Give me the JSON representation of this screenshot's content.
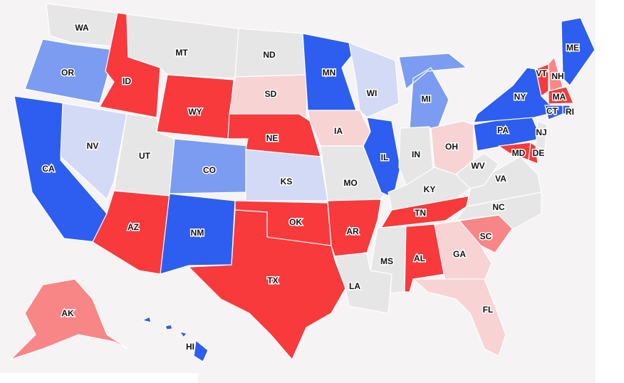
{
  "states": [
    {
      "label": "WA",
      "color": "#e6e6e6"
    },
    {
      "label": "OR",
      "color": "#7b9cf0"
    },
    {
      "label": "CA",
      "color": "#2d5ef0"
    },
    {
      "label": "NV",
      "color": "#d3daf5"
    },
    {
      "label": "ID",
      "color": "#f83a3d"
    },
    {
      "label": "MT",
      "color": "#e6e6e6"
    },
    {
      "label": "WY",
      "color": "#f83a3d"
    },
    {
      "label": "UT",
      "color": "#e6e6e6"
    },
    {
      "label": "AZ",
      "color": "#f83a3d"
    },
    {
      "label": "CO",
      "color": "#7b9cf0"
    },
    {
      "label": "NM",
      "color": "#2d5ef0"
    },
    {
      "label": "ND",
      "color": "#e6e6e6"
    },
    {
      "label": "SD",
      "color": "#f8d3d3"
    },
    {
      "label": "NE",
      "color": "#f83a3d"
    },
    {
      "label": "KS",
      "color": "#d3daf5"
    },
    {
      "label": "OK",
      "color": "#f83a3d"
    },
    {
      "label": "TX",
      "color": "#f83a3d"
    },
    {
      "label": "MN",
      "color": "#2d5ef0"
    },
    {
      "label": "IA",
      "color": "#f8d3d3"
    },
    {
      "label": "MO",
      "color": "#e6e6e6"
    },
    {
      "label": "AR",
      "color": "#f83a3d"
    },
    {
      "label": "LA",
      "color": "#e6e6e6"
    },
    {
      "label": "WI",
      "color": "#d3daf5"
    },
    {
      "label": "IL",
      "color": "#2d5ef0"
    },
    {
      "label": "MI",
      "color": "#7b9cf0"
    },
    {
      "label": "IN",
      "color": "#e6e6e6"
    },
    {
      "label": "OH",
      "color": "#f8d3d3"
    },
    {
      "label": "KY",
      "color": "#e6e6e6"
    },
    {
      "label": "TN",
      "color": "#f83a3d"
    },
    {
      "label": "MS",
      "color": "#e6e6e6"
    },
    {
      "label": "AL",
      "color": "#f83a3d"
    },
    {
      "label": "GA",
      "color": "#f8d3d3"
    },
    {
      "label": "FL",
      "color": "#f8d3d3"
    },
    {
      "label": "SC",
      "color": "#f98686"
    },
    {
      "label": "NC",
      "color": "#e6e6e6"
    },
    {
      "label": "VA",
      "color": "#e6e6e6"
    },
    {
      "label": "WV",
      "color": "#e6e6e6"
    },
    {
      "label": "PA",
      "color": "#2d5ef0"
    },
    {
      "label": "NY",
      "color": "#2d5ef0"
    },
    {
      "label": "VT",
      "color": "#f83a3d"
    },
    {
      "label": "NH",
      "color": "#f98686"
    },
    {
      "label": "ME",
      "color": "#2d5ef0"
    },
    {
      "label": "MA",
      "color": "#f83a3d"
    },
    {
      "label": "RI",
      "color": "#2d5ef0"
    },
    {
      "label": "CT",
      "color": "#2d5ef0"
    },
    {
      "label": "NJ",
      "color": "#e6e6e6"
    },
    {
      "label": "DE",
      "color": "#f83a3d"
    },
    {
      "label": "MD",
      "color": "#f83a3d"
    },
    {
      "label": "AK",
      "color": "#f98686"
    },
    {
      "label": "HI",
      "color": "#2d5ef0"
    }
  ]
}
